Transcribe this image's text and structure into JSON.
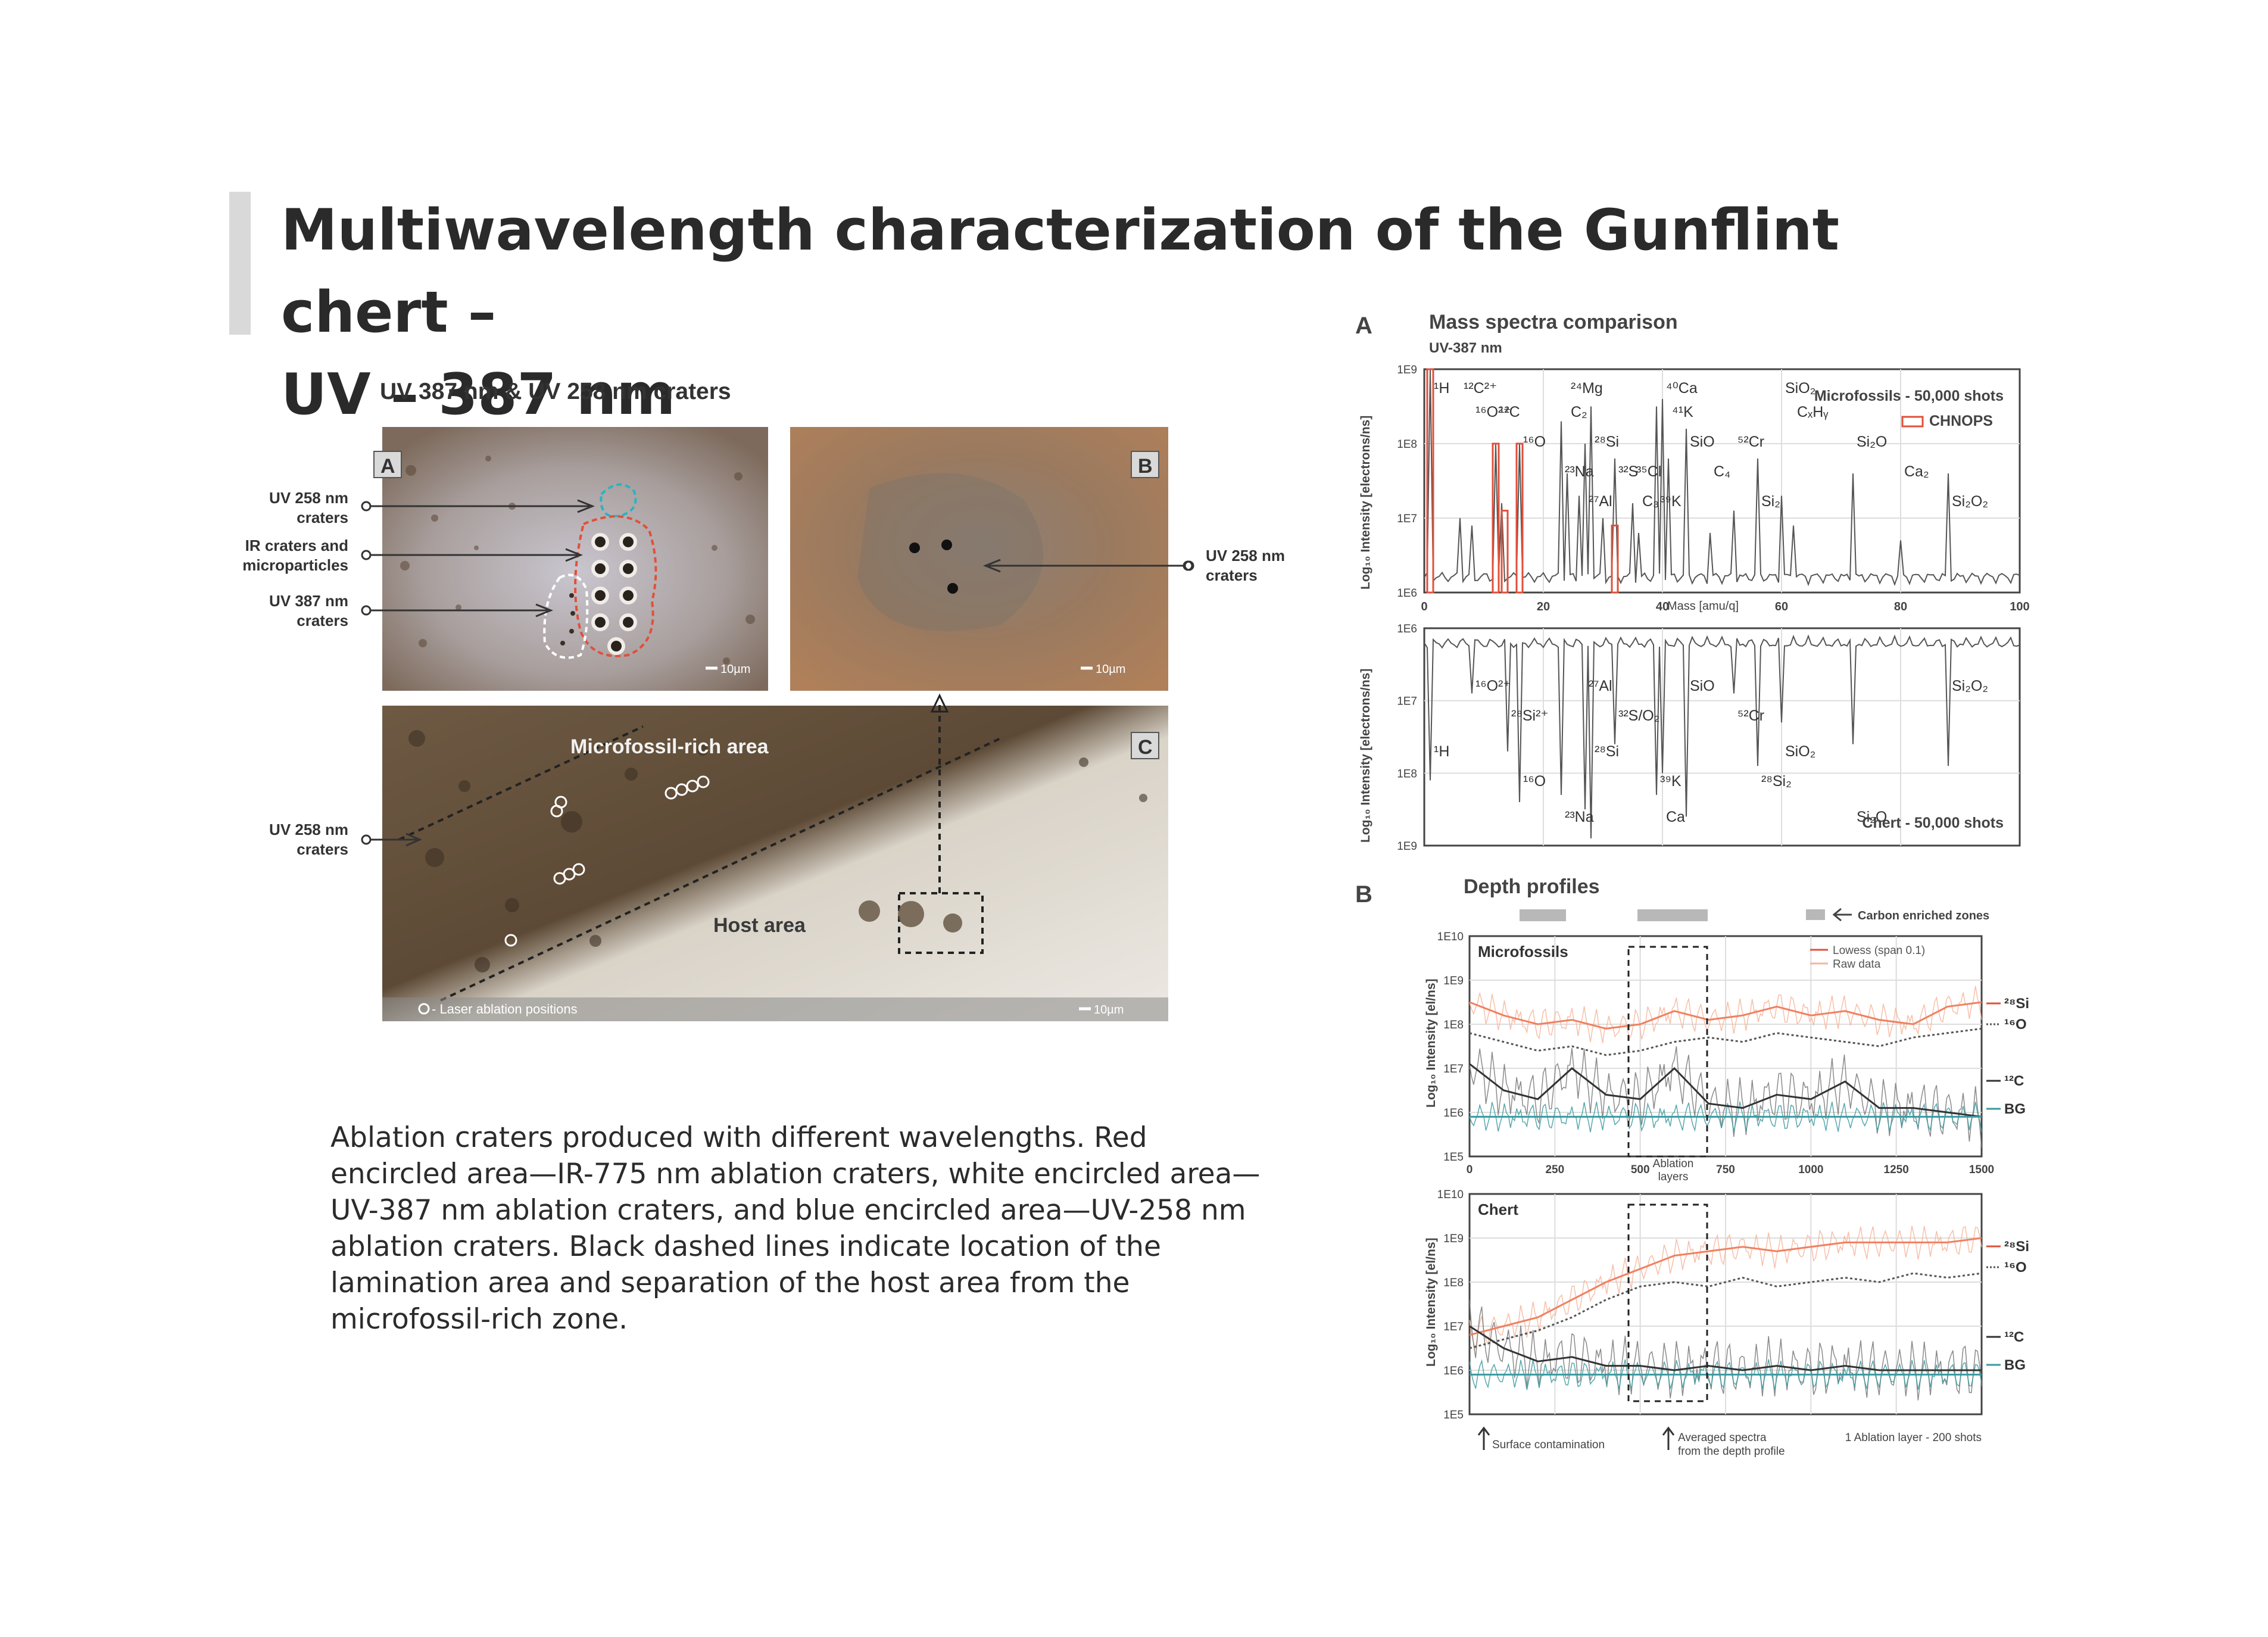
{
  "slide": {
    "title_line1": "Multiwavelength characterization of the Gunflint chert –",
    "title_line2": "UV – 387 nm",
    "caption": "Ablation craters produced with different wavelengths. Red encircled area—IR-775 nm ablation craters, white encircled area—UV-387 nm ablation craters, and blue encircled area—UV-258 nm ablation craters. Black dashed lines indicate location of the lamination area and separation of the host area from the microfossil-rich zone."
  },
  "micrograph_figure": {
    "title": "UV 387 nm & UV 258 nm craters",
    "panel_a": "A",
    "panel_b": "B",
    "panel_c": "C",
    "callouts": {
      "uv258_a_1": "UV 258 nm",
      "uv258_a_2": "craters",
      "ir_1": "IR craters and",
      "ir_2": "microparticles",
      "uv387_1": "UV 387 nm",
      "uv387_2": "craters",
      "uv258_b_1": "UV 258 nm",
      "uv258_b_2": "craters",
      "uv258_c_1": "UV 258 nm",
      "uv258_c_2": "craters"
    },
    "scale_a": "10µm",
    "scale_b": "10µm",
    "scale_c": "10µm",
    "microfossil_area": "Microfossil-rich area",
    "host_area": "Host area",
    "legend_laser": "- Laser ablation positions",
    "colors": {
      "ir_outline": "#e0503a",
      "uv387_outline": "#ffffff",
      "uv258_outline": "#2bb3c0",
      "rock_dark": "#5a4a3a",
      "rock_light": "#e8e4dc"
    }
  },
  "mass_spectra": {
    "panel": "A",
    "title": "Mass spectra comparison",
    "subtitle": "UV-387 nm",
    "ylabel": "Log₁₀ Intensity [electrons/ns]",
    "xlabel": "Mass [amu/q]",
    "top_legend_series": "Microfossils - 50,000 shots",
    "top_legend_box": "CHNOPS",
    "bottom_legend_series": "Chert - 50,000 shots",
    "top_yticks": [
      "1E9",
      "1E8",
      "1E7",
      "1E6"
    ],
    "bottom_yticks": [
      "1E6",
      "1E7",
      "1E8",
      "1E9"
    ],
    "xticks": [
      "0",
      "20",
      "40",
      "60",
      "80",
      "100"
    ],
    "top_peak_labels": [
      {
        "label": "¹H",
        "mass": 1
      },
      {
        "label": "¹²C",
        "mass": 12
      },
      {
        "label": "¹⁶O",
        "mass": 16
      },
      {
        "label": "²³Na",
        "mass": 23
      },
      {
        "label": "²⁷Al",
        "mass": 27
      },
      {
        "label": "²⁴Mg",
        "mass": 24
      },
      {
        "label": "C₂",
        "mass": 24
      },
      {
        "label": "²⁸Si",
        "mass": 28
      },
      {
        "label": "³²S",
        "mass": 32
      },
      {
        "label": "³⁹K",
        "mass": 39
      },
      {
        "label": "⁴⁰Ca",
        "mass": 40
      },
      {
        "label": "⁴¹K",
        "mass": 41
      },
      {
        "label": "SiO",
        "mass": 44
      },
      {
        "label": "³⁵Cl",
        "mass": 35
      },
      {
        "label": "C₃",
        "mass": 36
      },
      {
        "label": "¹²C²⁺",
        "mass": 6
      },
      {
        "label": "¹⁶O²⁺",
        "mass": 8
      },
      {
        "label": "⁵²Cr",
        "mass": 52
      },
      {
        "label": "C₄",
        "mass": 48
      },
      {
        "label": "Si₂",
        "mass": 56
      },
      {
        "label": "SiO₂",
        "mass": 60
      },
      {
        "label": "CₓHᵧ",
        "mass": 62
      },
      {
        "label": "Si₂O",
        "mass": 72
      },
      {
        "label": "Ca₂",
        "mass": 80
      },
      {
        "label": "Si₂O₂",
        "mass": 88
      }
    ],
    "bottom_peak_labels": [
      {
        "label": "¹⁶O²⁺",
        "mass": 8
      },
      {
        "label": "²⁸Si²⁺",
        "mass": 14
      },
      {
        "label": "¹H",
        "mass": 1
      },
      {
        "label": "¹⁶O",
        "mass": 16
      },
      {
        "label": "²³Na",
        "mass": 23
      },
      {
        "label": "²⁷Al",
        "mass": 27
      },
      {
        "label": "³²S/O₂",
        "mass": 32
      },
      {
        "label": "²⁸Si",
        "mass": 28
      },
      {
        "label": "³⁹K",
        "mass": 39
      },
      {
        "label": "Ca",
        "mass": 40
      },
      {
        "label": "SiO",
        "mass": 44
      },
      {
        "label": "⁵²Cr",
        "mass": 52
      },
      {
        "label": "SiO₂",
        "mass": 60
      },
      {
        "label": "²⁸Si₂",
        "mass": 56
      },
      {
        "label": "Si₂O",
        "mass": 72
      },
      {
        "label": "Si₂O₂",
        "mass": 88
      }
    ]
  },
  "depth_profiles": {
    "panel": "B",
    "title": "Depth profiles",
    "carbon_legend": "Carbon enriched zones",
    "ylabel_top": "Log₁₀ Intensity [el/ns]",
    "ylabel_bottom": "Log₁₀ Intensity [el/ns]",
    "yticks": [
      "1E10",
      "1E9",
      "1E8",
      "1E7",
      "1E6",
      "1E5"
    ],
    "xticks": [
      "0",
      "250",
      "500",
      "750",
      "1000",
      "1250",
      "1500"
    ],
    "xlabel_1": "Ablation",
    "xlabel_2": "layers",
    "top_label": "Microfossils",
    "bottom_label": "Chert",
    "legend_lowess": "Lowess (span 0.1)",
    "legend_raw": "Raw data",
    "series_si": "²⁸Si",
    "series_o": "¹⁶O",
    "series_c": "¹²C",
    "series_bg": "BG",
    "note_surface": "Surface contamination",
    "note_avg_1": "Averaged spectra",
    "note_avg_2": "from the depth profile",
    "note_layer": "1 Ablation layer - 200 shots",
    "colors": {
      "si": "#f08060",
      "si_raw": "#f6b59a",
      "o": "#555555",
      "c": "#333333",
      "bg": "#3a9aa0"
    }
  },
  "chart_data": [
    {
      "type": "line",
      "title": "Mass spectra comparison",
      "subtitle": "UV-387 nm",
      "xlabel": "Mass [amu/q]",
      "ylabel": "Log₁₀ Intensity [electrons/ns]",
      "xlim": [
        0,
        100
      ],
      "scale": "log",
      "series": [
        {
          "name": "Microfossils - 50,000 shots",
          "ylim": [
            1000000.0,
            1000000000.0
          ],
          "peaks": [
            [
              1,
              9.0
            ],
            [
              6,
              7.0
            ],
            [
              8,
              6.9
            ],
            [
              12,
              8.0
            ],
            [
              13,
              7.2
            ],
            [
              16,
              8.0
            ],
            [
              23,
              8.3
            ],
            [
              24,
              7.6
            ],
            [
              26,
              7.3
            ],
            [
              27,
              8.0
            ],
            [
              28,
              8.5
            ],
            [
              30,
              7.0
            ],
            [
              32,
              7.8
            ],
            [
              35,
              7.2
            ],
            [
              36,
              6.8
            ],
            [
              39,
              8.5
            ],
            [
              40,
              8.6
            ],
            [
              41,
              7.8
            ],
            [
              44,
              8.2
            ],
            [
              48,
              6.8
            ],
            [
              52,
              7.1
            ],
            [
              56,
              7.8
            ],
            [
              60,
              7.3
            ],
            [
              62,
              6.9
            ],
            [
              72,
              7.6
            ],
            [
              80,
              6.7
            ],
            [
              88,
              7.6
            ]
          ]
        },
        {
          "name": "Chert - 50,000 shots",
          "ylim": [
            1000000.0,
            1000000000.0
          ],
          "peaks": [
            [
              1,
              8.1
            ],
            [
              8,
              6.9
            ],
            [
              14,
              7.7
            ],
            [
              16,
              8.4
            ],
            [
              23,
              8.3
            ],
            [
              27,
              8.5
            ],
            [
              28,
              8.9
            ],
            [
              32,
              7.6
            ],
            [
              39,
              8.3
            ],
            [
              40,
              8.0
            ],
            [
              44,
              8.6
            ],
            [
              52,
              6.9
            ],
            [
              56,
              7.9
            ],
            [
              60,
              7.3
            ],
            [
              72,
              7.6
            ],
            [
              88,
              7.9
            ]
          ]
        }
      ]
    },
    {
      "type": "line",
      "title": "Depth profiles",
      "xlabel": "Ablation layers",
      "ylabel": "Log₁₀ Intensity [el/ns]",
      "xlim": [
        0,
        1500
      ],
      "ylim": [
        100000.0,
        10000000000.0
      ],
      "scale": "log",
      "panels": [
        {
          "name": "Microfossils",
          "x": [
            0,
            100,
            200,
            300,
            400,
            500,
            600,
            700,
            800,
            900,
            1000,
            1100,
            1200,
            1300,
            1400,
            1500
          ],
          "series": [
            {
              "name": "²⁸Si",
              "values": [
                8.5,
                8.2,
                8.0,
                8.1,
                7.9,
                8.0,
                8.3,
                8.1,
                8.2,
                8.4,
                8.2,
                8.3,
                8.1,
                8.0,
                8.4,
                8.5
              ]
            },
            {
              "name": "¹⁶O",
              "values": [
                7.8,
                7.6,
                7.4,
                7.5,
                7.3,
                7.4,
                7.6,
                7.7,
                7.6,
                7.8,
                7.7,
                7.6,
                7.5,
                7.7,
                7.8,
                7.9
              ]
            },
            {
              "name": "¹²C",
              "values": [
                7.1,
                6.5,
                6.3,
                7.0,
                6.4,
                6.3,
                7.0,
                6.2,
                6.1,
                6.4,
                6.3,
                6.7,
                6.1,
                6.1,
                6.0,
                5.9
              ]
            },
            {
              "name": "BG",
              "values": [
                5.9,
                5.9,
                5.9,
                5.9,
                5.9,
                5.9,
                5.9,
                5.9,
                5.9,
                5.9,
                5.9,
                5.9,
                5.9,
                5.9,
                5.9,
                5.9
              ]
            }
          ]
        },
        {
          "name": "Chert",
          "x": [
            0,
            100,
            200,
            300,
            400,
            500,
            600,
            700,
            800,
            900,
            1000,
            1100,
            1200,
            1300,
            1400,
            1500
          ],
          "series": [
            {
              "name": "²⁸Si",
              "values": [
                6.8,
                7.0,
                7.2,
                7.6,
                8.0,
                8.3,
                8.6,
                8.7,
                8.8,
                8.7,
                8.8,
                8.9,
                8.9,
                8.9,
                8.9,
                9.0
              ]
            },
            {
              "name": "¹⁶O",
              "values": [
                6.5,
                6.7,
                6.9,
                7.2,
                7.6,
                7.9,
                8.0,
                7.9,
                8.1,
                7.9,
                8.0,
                8.1,
                8.0,
                8.2,
                8.1,
                8.2
              ]
            },
            {
              "name": "¹²C",
              "values": [
                7.0,
                6.5,
                6.2,
                6.3,
                6.1,
                6.1,
                6.0,
                6.1,
                6.0,
                6.1,
                6.0,
                6.1,
                6.0,
                6.0,
                6.0,
                6.0
              ]
            },
            {
              "name": "BG",
              "values": [
                5.9,
                5.9,
                5.9,
                5.9,
                5.9,
                5.9,
                5.9,
                5.9,
                5.9,
                5.9,
                5.9,
                5.9,
                5.9,
                5.9,
                5.9,
                5.9
              ]
            }
          ]
        }
      ]
    }
  ]
}
